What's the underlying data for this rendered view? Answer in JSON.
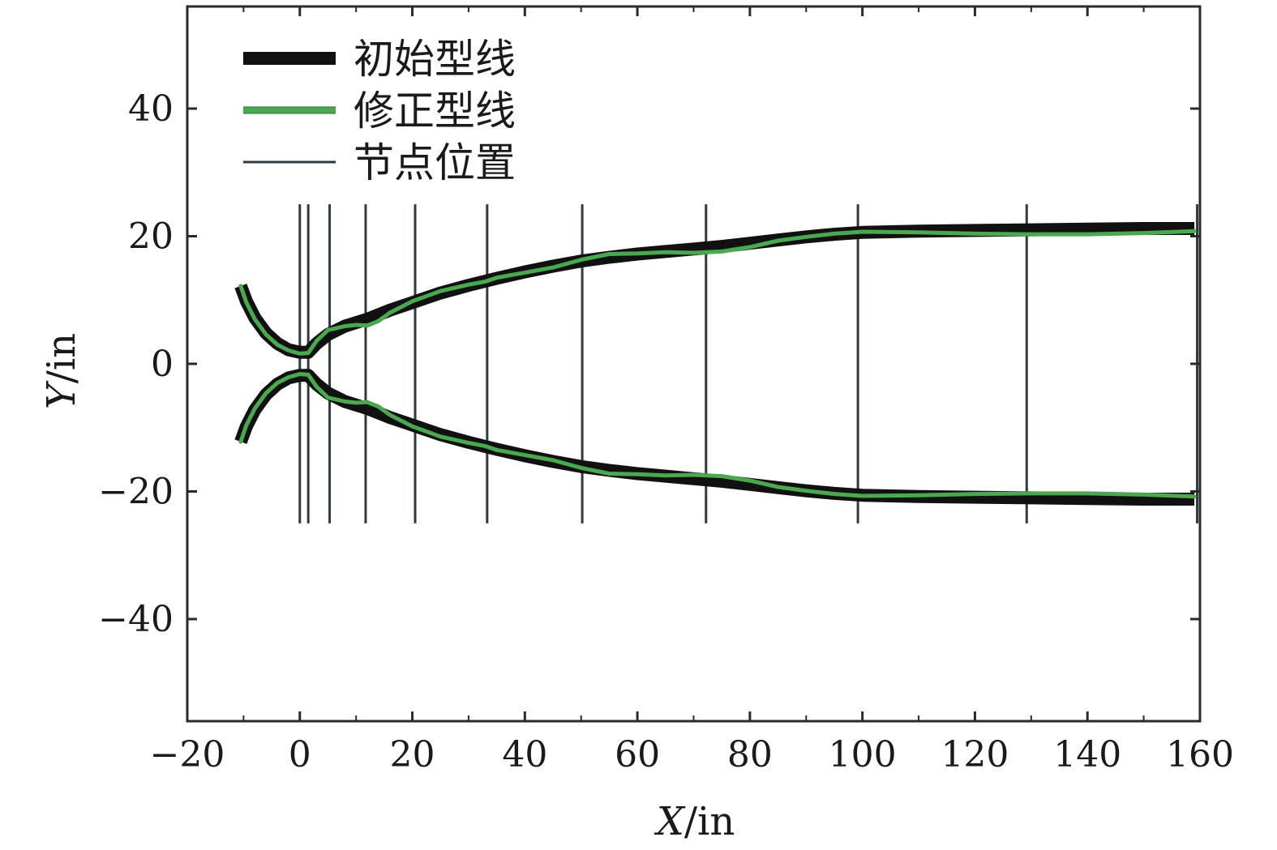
{
  "chart_data": {
    "type": "line",
    "title": "",
    "xlabel": {
      "var": "X",
      "unit": "/in"
    },
    "ylabel": {
      "var": "Y",
      "unit": "/in"
    },
    "xlim": [
      -20,
      160
    ],
    "ylim": [
      -56,
      56
    ],
    "xticks": [
      -20,
      0,
      20,
      40,
      60,
      80,
      100,
      120,
      140,
      160
    ],
    "yticks": [
      -40,
      -20,
      0,
      20,
      40
    ],
    "grid": false,
    "legend_position": "top-left",
    "legend": [
      {
        "name": "初始型线",
        "style": "thick",
        "color": "#111111"
      },
      {
        "name": "修正型线",
        "style": "medium",
        "color": "#4aa84f"
      },
      {
        "name": "节点位置",
        "style": "thin",
        "color": "#2f3a40"
      }
    ],
    "series": [
      {
        "name": "初始型线",
        "color": "#111111",
        "upper": [
          [
            -10.5,
            12.2
          ],
          [
            -9.5,
            9.8
          ],
          [
            -8,
            7.2
          ],
          [
            -6,
            4.8
          ],
          [
            -4,
            3.2
          ],
          [
            -2,
            2.2
          ],
          [
            0,
            1.8
          ],
          [
            1.5,
            1.8
          ],
          [
            3,
            3.2
          ],
          [
            5,
            4.6
          ],
          [
            8,
            5.9
          ],
          [
            12,
            7.0
          ],
          [
            16,
            8.4
          ],
          [
            20,
            9.6
          ],
          [
            25,
            11.1
          ],
          [
            30,
            12.3
          ],
          [
            35,
            13.4
          ],
          [
            40,
            14.4
          ],
          [
            45,
            15.3
          ],
          [
            50,
            16.1
          ],
          [
            55,
            16.7
          ],
          [
            60,
            17.2
          ],
          [
            65,
            17.6
          ],
          [
            70,
            18.0
          ],
          [
            75,
            18.4
          ],
          [
            80,
            18.9
          ],
          [
            85,
            19.4
          ],
          [
            90,
            19.9
          ],
          [
            95,
            20.3
          ],
          [
            100,
            20.6
          ],
          [
            110,
            20.8
          ],
          [
            120,
            20.9
          ],
          [
            130,
            21.0
          ],
          [
            140,
            21.1
          ],
          [
            150,
            21.2
          ],
          [
            159,
            21.2
          ]
        ],
        "lower": [
          [
            -10.5,
            -12.2
          ],
          [
            -9.5,
            -9.8
          ],
          [
            -8,
            -7.2
          ],
          [
            -6,
            -4.8
          ],
          [
            -4,
            -3.2
          ],
          [
            -2,
            -2.2
          ],
          [
            0,
            -1.8
          ],
          [
            1.5,
            -1.8
          ],
          [
            3,
            -3.2
          ],
          [
            5,
            -4.6
          ],
          [
            8,
            -5.9
          ],
          [
            12,
            -7.0
          ],
          [
            16,
            -8.4
          ],
          [
            20,
            -9.6
          ],
          [
            25,
            -11.1
          ],
          [
            30,
            -12.3
          ],
          [
            35,
            -13.4
          ],
          [
            40,
            -14.4
          ],
          [
            45,
            -15.3
          ],
          [
            50,
            -16.1
          ],
          [
            55,
            -16.7
          ],
          [
            60,
            -17.2
          ],
          [
            65,
            -17.6
          ],
          [
            70,
            -18.0
          ],
          [
            75,
            -18.4
          ],
          [
            80,
            -18.9
          ],
          [
            85,
            -19.4
          ],
          [
            90,
            -19.9
          ],
          [
            95,
            -20.3
          ],
          [
            100,
            -20.6
          ],
          [
            110,
            -20.8
          ],
          [
            120,
            -20.9
          ],
          [
            130,
            -21.0
          ],
          [
            140,
            -21.1
          ],
          [
            150,
            -21.2
          ],
          [
            159,
            -21.2
          ]
        ]
      },
      {
        "name": "修正型线",
        "color": "#4aa84f",
        "upper": [
          [
            -10.5,
            12.2
          ],
          [
            -9.5,
            9.6
          ],
          [
            -8,
            7.0
          ],
          [
            -6,
            4.6
          ],
          [
            -4,
            3.0
          ],
          [
            -2,
            2.1
          ],
          [
            0,
            1.6
          ],
          [
            1.5,
            1.7
          ],
          [
            3,
            3.6
          ],
          [
            5,
            5.3
          ],
          [
            8,
            5.9
          ],
          [
            10,
            6.1
          ],
          [
            12,
            6.0
          ],
          [
            14,
            6.7
          ],
          [
            16,
            8.0
          ],
          [
            20,
            9.8
          ],
          [
            25,
            11.4
          ],
          [
            30,
            12.4
          ],
          [
            33,
            12.9
          ],
          [
            35,
            13.5
          ],
          [
            40,
            14.3
          ],
          [
            45,
            15.1
          ],
          [
            50,
            16.3
          ],
          [
            55,
            17.2
          ],
          [
            60,
            17.3
          ],
          [
            65,
            17.5
          ],
          [
            70,
            17.4
          ],
          [
            75,
            17.6
          ],
          [
            80,
            18.3
          ],
          [
            85,
            19.3
          ],
          [
            90,
            19.9
          ],
          [
            95,
            20.4
          ],
          [
            100,
            20.7
          ],
          [
            110,
            20.6
          ],
          [
            120,
            20.4
          ],
          [
            130,
            20.3
          ],
          [
            140,
            20.3
          ],
          [
            150,
            20.5
          ],
          [
            159,
            20.8
          ]
        ],
        "lower": [
          [
            -10.5,
            -12.2
          ],
          [
            -9.5,
            -9.6
          ],
          [
            -8,
            -7.0
          ],
          [
            -6,
            -4.6
          ],
          [
            -4,
            -3.0
          ],
          [
            -2,
            -2.1
          ],
          [
            0,
            -1.6
          ],
          [
            1.5,
            -1.7
          ],
          [
            3,
            -3.6
          ],
          [
            5,
            -5.3
          ],
          [
            8,
            -5.9
          ],
          [
            10,
            -6.1
          ],
          [
            12,
            -6.0
          ],
          [
            14,
            -6.7
          ],
          [
            16,
            -8.0
          ],
          [
            20,
            -9.8
          ],
          [
            25,
            -11.4
          ],
          [
            30,
            -12.4
          ],
          [
            33,
            -12.9
          ],
          [
            35,
            -13.5
          ],
          [
            40,
            -14.3
          ],
          [
            45,
            -15.1
          ],
          [
            50,
            -16.3
          ],
          [
            55,
            -17.2
          ],
          [
            60,
            -17.3
          ],
          [
            65,
            -17.5
          ],
          [
            70,
            -17.4
          ],
          [
            75,
            -17.6
          ],
          [
            80,
            -18.3
          ],
          [
            85,
            -19.3
          ],
          [
            90,
            -19.9
          ],
          [
            95,
            -20.4
          ],
          [
            100,
            -20.7
          ],
          [
            110,
            -20.6
          ],
          [
            120,
            -20.4
          ],
          [
            130,
            -20.3
          ],
          [
            140,
            -20.3
          ],
          [
            150,
            -20.5
          ],
          [
            159,
            -20.8
          ]
        ]
      }
    ],
    "nodes": {
      "name": "节点位置",
      "x": [
        0,
        1.5,
        5.3,
        11.7,
        20.5,
        33.3,
        50.2,
        72.2,
        99.2,
        129.2,
        159.5
      ],
      "y_range": [
        -25,
        25
      ]
    }
  }
}
